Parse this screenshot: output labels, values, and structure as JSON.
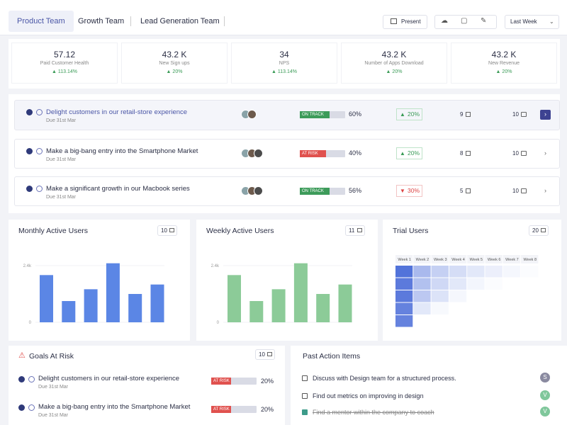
{
  "tabs": [
    "Product Team",
    "Growth Team",
    "Lead Generation Team"
  ],
  "toolbar": {
    "present": "Present",
    "period": "Last Week"
  },
  "kpis": [
    {
      "value": "57.12",
      "label": "Paid Customer Health",
      "change": "113.14%"
    },
    {
      "value": "43.2 K",
      "label": "New Sign ups",
      "change": "20%"
    },
    {
      "value": "34",
      "label": "NPS",
      "change": "113.14%"
    },
    {
      "value": "43.2 K",
      "label": "Number of Apps Download",
      "change": "20%"
    },
    {
      "value": "43.2 K",
      "label": "New Revenue",
      "change": "20%"
    }
  ],
  "goals": [
    {
      "title": "Delight customers in our retail-store experience",
      "due": "Due 31st Mar",
      "status": "ON TRACK",
      "progress": "60%",
      "change": "20%",
      "trend": "up",
      "tasks": "9",
      "comments": "10"
    },
    {
      "title": "Make a big-bang entry into the Smartphone Market",
      "due": "Due 31st Mar",
      "status": "AT RISK",
      "progress": "40%",
      "change": "20%",
      "trend": "up",
      "tasks": "8",
      "comments": "10"
    },
    {
      "title": "Make a significant growth in our Macbook series",
      "due": "Due 31st Mar",
      "status": "ON TRACK",
      "progress": "56%",
      "change": "30%",
      "trend": "down",
      "tasks": "5",
      "comments": "10"
    }
  ],
  "charts": [
    {
      "type": "bar",
      "title": "Monthly Active Users",
      "count": "10",
      "color": "#5b86e5",
      "values": [
        2000,
        900,
        1400,
        2500,
        1200,
        1600
      ],
      "ylim": [
        0,
        2700
      ],
      "yticks": [
        0,
        {
          "value": 2400,
          "label": "2.4k"
        }
      ]
    },
    {
      "type": "bar",
      "title": "Weekly Active Users",
      "count": "11",
      "color": "#8ccb98",
      "values": [
        2000,
        900,
        1400,
        2500,
        1200,
        1600
      ],
      "ylim": [
        0,
        2700
      ],
      "yticks": [
        0,
        {
          "value": 2400,
          "label": "2.4k"
        }
      ]
    }
  ],
  "trial": {
    "type": "heatmap",
    "title": "Trial Users",
    "count": "20",
    "color": "#3f63d6",
    "columns": [
      "Week 1",
      "Week 2",
      "Week 3",
      "Week 4",
      "Week 5",
      "Week 6",
      "Week 7",
      "Week 8"
    ],
    "rows": [
      [
        90,
        45,
        30,
        22,
        15,
        10,
        5,
        2
      ],
      [
        85,
        40,
        25,
        15,
        6,
        2
      ],
      [
        85,
        35,
        18,
        5
      ],
      [
        80,
        15,
        4
      ],
      [
        80
      ]
    ]
  },
  "risk": {
    "title": "Goals At Risk",
    "count": "10",
    "items": [
      {
        "title": "Delight customers in our retail-store experience",
        "due": "Due 31st Mar",
        "status": "AT RISK",
        "progress": "20%"
      },
      {
        "title": "Make a big-bang entry into the Smartphone Market",
        "due": "Due 31st Mar",
        "status": "AT RISK",
        "progress": "20%"
      }
    ]
  },
  "actions": {
    "title": "Past Action Items",
    "items": [
      {
        "text": "Discuss with Design team for a structured process.",
        "done": false,
        "assignee": "S"
      },
      {
        "text": "Find out metrics on improving in design",
        "done": false,
        "assignee": "V"
      },
      {
        "text": "Find a mentor within the company to coach",
        "done": true,
        "assignee": "V"
      }
    ]
  }
}
